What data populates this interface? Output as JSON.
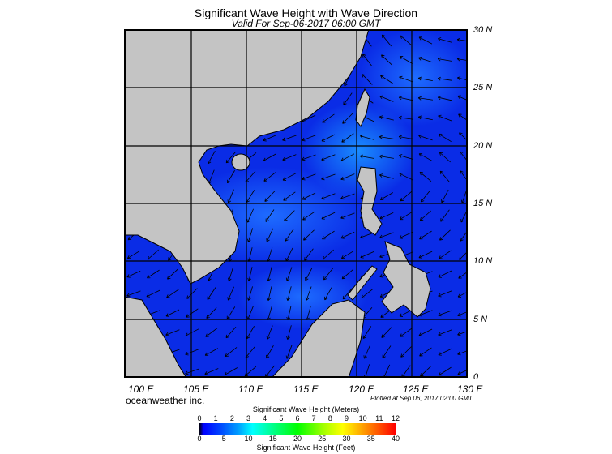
{
  "title": "Significant Wave Height with Wave Direction",
  "subtitle": "Valid For Sep-06-2017 06:00 GMT",
  "map": {
    "lat_labels": [
      "30 N",
      "25 N",
      "20 N",
      "15 N",
      "10 N",
      "5 N",
      "0"
    ],
    "lon_labels": [
      "100 E",
      "105 E",
      "110 E",
      "115 E",
      "120 E",
      "125 E",
      "130 E"
    ],
    "ocean_color": "#0a2ce6",
    "land_color": "#c4c4c4"
  },
  "brand": "oceanweather inc.",
  "plotted": "Plotted at Sep 06, 2017 02:00 GMT",
  "colorbar": {
    "meters_title": "Significant Wave Height (Meters)",
    "meters_ticks": [
      "0",
      "1",
      "2",
      "3",
      "4",
      "5",
      "6",
      "7",
      "8",
      "9",
      "10",
      "11",
      "12"
    ],
    "feet_ticks": [
      "0",
      "5",
      "10",
      "15",
      "20",
      "25",
      "30",
      "35",
      "40"
    ],
    "feet_title": "Significant Wave Height (Feet)"
  }
}
